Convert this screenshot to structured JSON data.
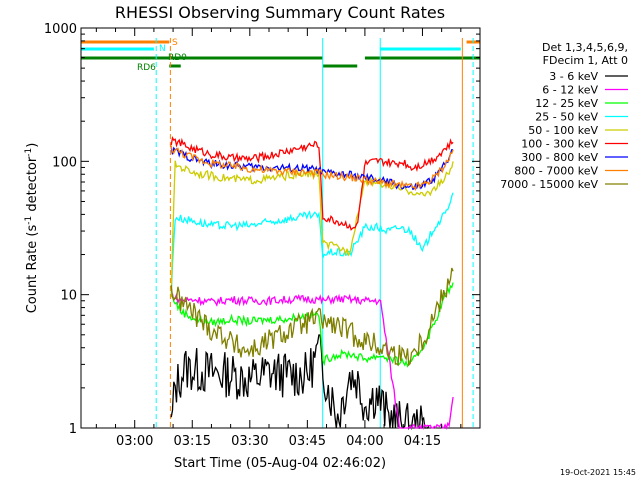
{
  "chart_data": {
    "type": "line",
    "title": "RHESSI Observing Summary Count Rates",
    "xlabel": "Start Time (05-Aug-04 02:46:02)",
    "ylabel_main": "Count Rate (s",
    "ylabel_sup1": "-1",
    "ylabel_mid": " detector",
    "ylabel_sup2": "-1",
    "ylabel_end": ")",
    "footer": "19-Oct-2021 15:45",
    "x_range_min": [
      166,
      270
    ],
    "ylim": [
      1,
      1000
    ],
    "y_scale": "log",
    "x_ticks": [
      {
        "min": 180,
        "label": "03:00"
      },
      {
        "min": 195,
        "label": "03:15"
      },
      {
        "min": 210,
        "label": "03:30"
      },
      {
        "min": 225,
        "label": "03:45"
      },
      {
        "min": 240,
        "label": "04:00"
      },
      {
        "min": 255,
        "label": "04:15"
      }
    ],
    "y_ticks": [
      {
        "v": 1,
        "label": "1"
      },
      {
        "v": 10,
        "label": "10"
      },
      {
        "v": 100,
        "label": "100"
      },
      {
        "v": 1000,
        "label": "1000"
      }
    ],
    "legend_header": [
      "Det 1,3,4,5,6,9,",
      "FDecim 1, Att 0"
    ],
    "legend": [
      {
        "label": "3 - 6 keV",
        "color": "#000000"
      },
      {
        "label": "6 - 12 keV",
        "color": "#ff00ff"
      },
      {
        "label": "12 - 25 keV",
        "color": "#00ff00"
      },
      {
        "label": "25 - 50 keV",
        "color": "#00ffff"
      },
      {
        "label": "50 - 100 keV",
        "color": "#cccc00"
      },
      {
        "label": "100 - 300 keV",
        "color": "#ff0000"
      },
      {
        "label": "300 - 800 keV",
        "color": "#0000ff"
      },
      {
        "label": "800 - 7000 keV",
        "color": "#ff8000"
      },
      {
        "label": "7000 - 15000 keV",
        "color": "#808000"
      }
    ],
    "flags": [
      {
        "label": "S",
        "color": "#ff8000"
      },
      {
        "label": "N",
        "color": "#00ffff"
      },
      {
        "label": "RD0",
        "color": "#008000"
      },
      {
        "label": "RD6",
        "color": "#008000"
      }
    ],
    "series": [
      {
        "legend": "3 - 6 keV",
        "color": "#000000",
        "data_start_min": 189,
        "data_end_min": 257,
        "points": [
          [
            189.5,
            1
          ],
          [
            190.5,
            2
          ],
          [
            193,
            2.8
          ],
          [
            200,
            2.6
          ],
          [
            205,
            2.5
          ],
          [
            210,
            2.3
          ],
          [
            215,
            2.6
          ],
          [
            220,
            2.5
          ],
          [
            225,
            2.5
          ],
          [
            228,
            3.8
          ],
          [
            230,
            2.2
          ],
          [
            233,
            1.2
          ],
          [
            236,
            2.5
          ],
          [
            238,
            2.3
          ],
          [
            240,
            1.5
          ],
          [
            243,
            1.8
          ],
          [
            246,
            1.2
          ],
          [
            249,
            1.1
          ],
          [
            252,
            1
          ],
          [
            257,
            1
          ]
        ]
      },
      {
        "legend": "6 - 12 keV",
        "color": "#ff00ff",
        "data_start_min": 189,
        "data_end_min": 263,
        "points": [
          [
            189.5,
            10
          ],
          [
            192,
            9
          ],
          [
            196,
            9.2
          ],
          [
            200,
            8.8
          ],
          [
            205,
            9.2
          ],
          [
            210,
            9
          ],
          [
            215,
            9
          ],
          [
            220,
            9.2
          ],
          [
            225,
            9.3
          ],
          [
            228,
            9.2
          ],
          [
            229,
            9
          ],
          [
            232,
            9.3
          ],
          [
            236,
            9.2
          ],
          [
            240,
            9
          ],
          [
            244,
            9
          ],
          [
            249,
            1
          ],
          [
            258,
            1
          ],
          [
            261,
            1
          ],
          [
            262,
            1.1
          ],
          [
            263,
            1.8
          ]
        ]
      },
      {
        "legend": "12 - 25 keV",
        "color": "#00ff00",
        "data_start_min": 189,
        "data_end_min": 263,
        "points": [
          [
            189.5,
            10
          ],
          [
            192,
            7.5
          ],
          [
            196,
            6.5
          ],
          [
            200,
            6.2
          ],
          [
            205,
            6.5
          ],
          [
            210,
            6.3
          ],
          [
            215,
            6.5
          ],
          [
            220,
            6.6
          ],
          [
            225,
            7
          ],
          [
            228,
            7.2
          ],
          [
            229,
            3.2
          ],
          [
            232,
            3.5
          ],
          [
            236,
            3.6
          ],
          [
            240,
            3.3
          ],
          [
            244,
            3.5
          ],
          [
            248,
            3.2
          ],
          [
            252,
            3.0
          ],
          [
            255,
            4
          ],
          [
            258,
            6
          ],
          [
            261,
            10
          ],
          [
            263,
            12
          ]
        ]
      },
      {
        "legend": "25 - 50 keV",
        "color": "#00ffff",
        "data_start_min": 189,
        "data_end_min": 263,
        "points": [
          [
            189.5,
            10
          ],
          [
            190.5,
            38
          ],
          [
            195,
            36
          ],
          [
            200,
            33
          ],
          [
            205,
            33
          ],
          [
            210,
            33
          ],
          [
            215,
            35
          ],
          [
            220,
            37
          ],
          [
            225,
            39
          ],
          [
            228,
            39
          ],
          [
            229,
            20
          ],
          [
            232,
            21
          ],
          [
            236,
            20
          ],
          [
            240,
            32
          ],
          [
            243,
            32
          ],
          [
            246,
            30
          ],
          [
            249,
            32
          ],
          [
            252,
            30
          ],
          [
            255,
            21
          ],
          [
            258,
            32
          ],
          [
            261,
            40
          ],
          [
            263,
            60
          ]
        ]
      },
      {
        "legend": "50 - 100 keV",
        "color": "#cccc00",
        "data_start_min": 189,
        "data_end_min": 263,
        "points": [
          [
            189.5,
            10
          ],
          [
            190.5,
            95
          ],
          [
            193,
            88
          ],
          [
            196,
            82
          ],
          [
            200,
            78
          ],
          [
            205,
            74
          ],
          [
            210,
            72
          ],
          [
            215,
            74
          ],
          [
            220,
            78
          ],
          [
            225,
            80
          ],
          [
            228,
            80
          ],
          [
            229,
            24
          ],
          [
            232,
            23
          ],
          [
            236,
            21
          ],
          [
            240,
            72
          ],
          [
            243,
            70
          ],
          [
            246,
            66
          ],
          [
            249,
            62
          ],
          [
            252,
            60
          ],
          [
            255,
            55
          ],
          [
            258,
            62
          ],
          [
            261,
            75
          ],
          [
            263,
            95
          ]
        ]
      },
      {
        "legend": "100 - 300 keV",
        "color": "#ff0000",
        "data_start_min": 189,
        "data_end_min": 263,
        "points": [
          [
            189.5,
            140
          ],
          [
            191,
            140
          ],
          [
            194,
            128
          ],
          [
            197,
            120
          ],
          [
            200,
            113
          ],
          [
            205,
            106
          ],
          [
            210,
            104
          ],
          [
            215,
            110
          ],
          [
            220,
            120
          ],
          [
            225,
            130
          ],
          [
            228,
            135
          ],
          [
            229,
            38
          ],
          [
            232,
            36
          ],
          [
            236,
            33
          ],
          [
            238,
            32
          ],
          [
            240,
            95
          ],
          [
            243,
            100
          ],
          [
            246,
            98
          ],
          [
            248,
            95
          ],
          [
            250,
            100
          ],
          [
            252,
            90
          ],
          [
            255,
            95
          ],
          [
            258,
            105
          ],
          [
            261,
            125
          ],
          [
            263,
            140
          ]
        ]
      },
      {
        "legend": "300 - 800 keV",
        "color": "#0000ff",
        "data_start_min": 189,
        "data_end_min": 263,
        "points": [
          [
            189.5,
            120
          ],
          [
            191,
            118
          ],
          [
            194,
            108
          ],
          [
            197,
            101
          ],
          [
            200,
            96
          ],
          [
            205,
            93
          ],
          [
            210,
            91
          ],
          [
            215,
            90
          ],
          [
            220,
            89
          ],
          [
            225,
            88
          ],
          [
            228,
            86
          ],
          [
            229,
            82
          ],
          [
            232,
            81
          ],
          [
            236,
            79
          ],
          [
            240,
            75
          ],
          [
            243,
            73
          ],
          [
            246,
            70
          ],
          [
            249,
            66
          ],
          [
            252,
            63
          ],
          [
            255,
            65
          ],
          [
            258,
            75
          ],
          [
            261,
            95
          ],
          [
            263,
            130
          ]
        ]
      },
      {
        "legend": "800 - 7000 keV",
        "color": "#ff8000",
        "data_start_min": 189,
        "data_end_min": 263,
        "points": [
          [
            189.5,
            125
          ],
          [
            191,
            120
          ],
          [
            194,
            110
          ],
          [
            197,
            103
          ],
          [
            200,
            97
          ],
          [
            205,
            92
          ],
          [
            210,
            88
          ],
          [
            215,
            85
          ],
          [
            220,
            84
          ],
          [
            225,
            83
          ],
          [
            228,
            82
          ],
          [
            229,
            80
          ],
          [
            232,
            78
          ],
          [
            236,
            76
          ],
          [
            240,
            73
          ],
          [
            243,
            70
          ],
          [
            246,
            68
          ],
          [
            249,
            66
          ],
          [
            252,
            64
          ],
          [
            255,
            66
          ],
          [
            258,
            75
          ],
          [
            261,
            95
          ],
          [
            263,
            120
          ]
        ]
      },
      {
        "legend": "7000 - 15000 keV",
        "color": "#808000",
        "data_start_min": 189,
        "data_end_min": 263,
        "points": [
          [
            189.5,
            11
          ],
          [
            191,
            9.5
          ],
          [
            194,
            8
          ],
          [
            197,
            6.5
          ],
          [
            200,
            5.5
          ],
          [
            203,
            5
          ],
          [
            206,
            4.2
          ],
          [
            209,
            3.8
          ],
          [
            212,
            4
          ],
          [
            215,
            4.5
          ],
          [
            218,
            5
          ],
          [
            221,
            5.5
          ],
          [
            224,
            6
          ],
          [
            227,
            6.6
          ],
          [
            229,
            6.5
          ],
          [
            231,
            6.0
          ],
          [
            234,
            5.6
          ],
          [
            237,
            5.0
          ],
          [
            240,
            4.5
          ],
          [
            243,
            4.2
          ],
          [
            246,
            3.8
          ],
          [
            249,
            3.5
          ],
          [
            252,
            3.6
          ],
          [
            255,
            4.5
          ],
          [
            258,
            7
          ],
          [
            261,
            11
          ],
          [
            263,
            17
          ]
        ]
      }
    ]
  }
}
